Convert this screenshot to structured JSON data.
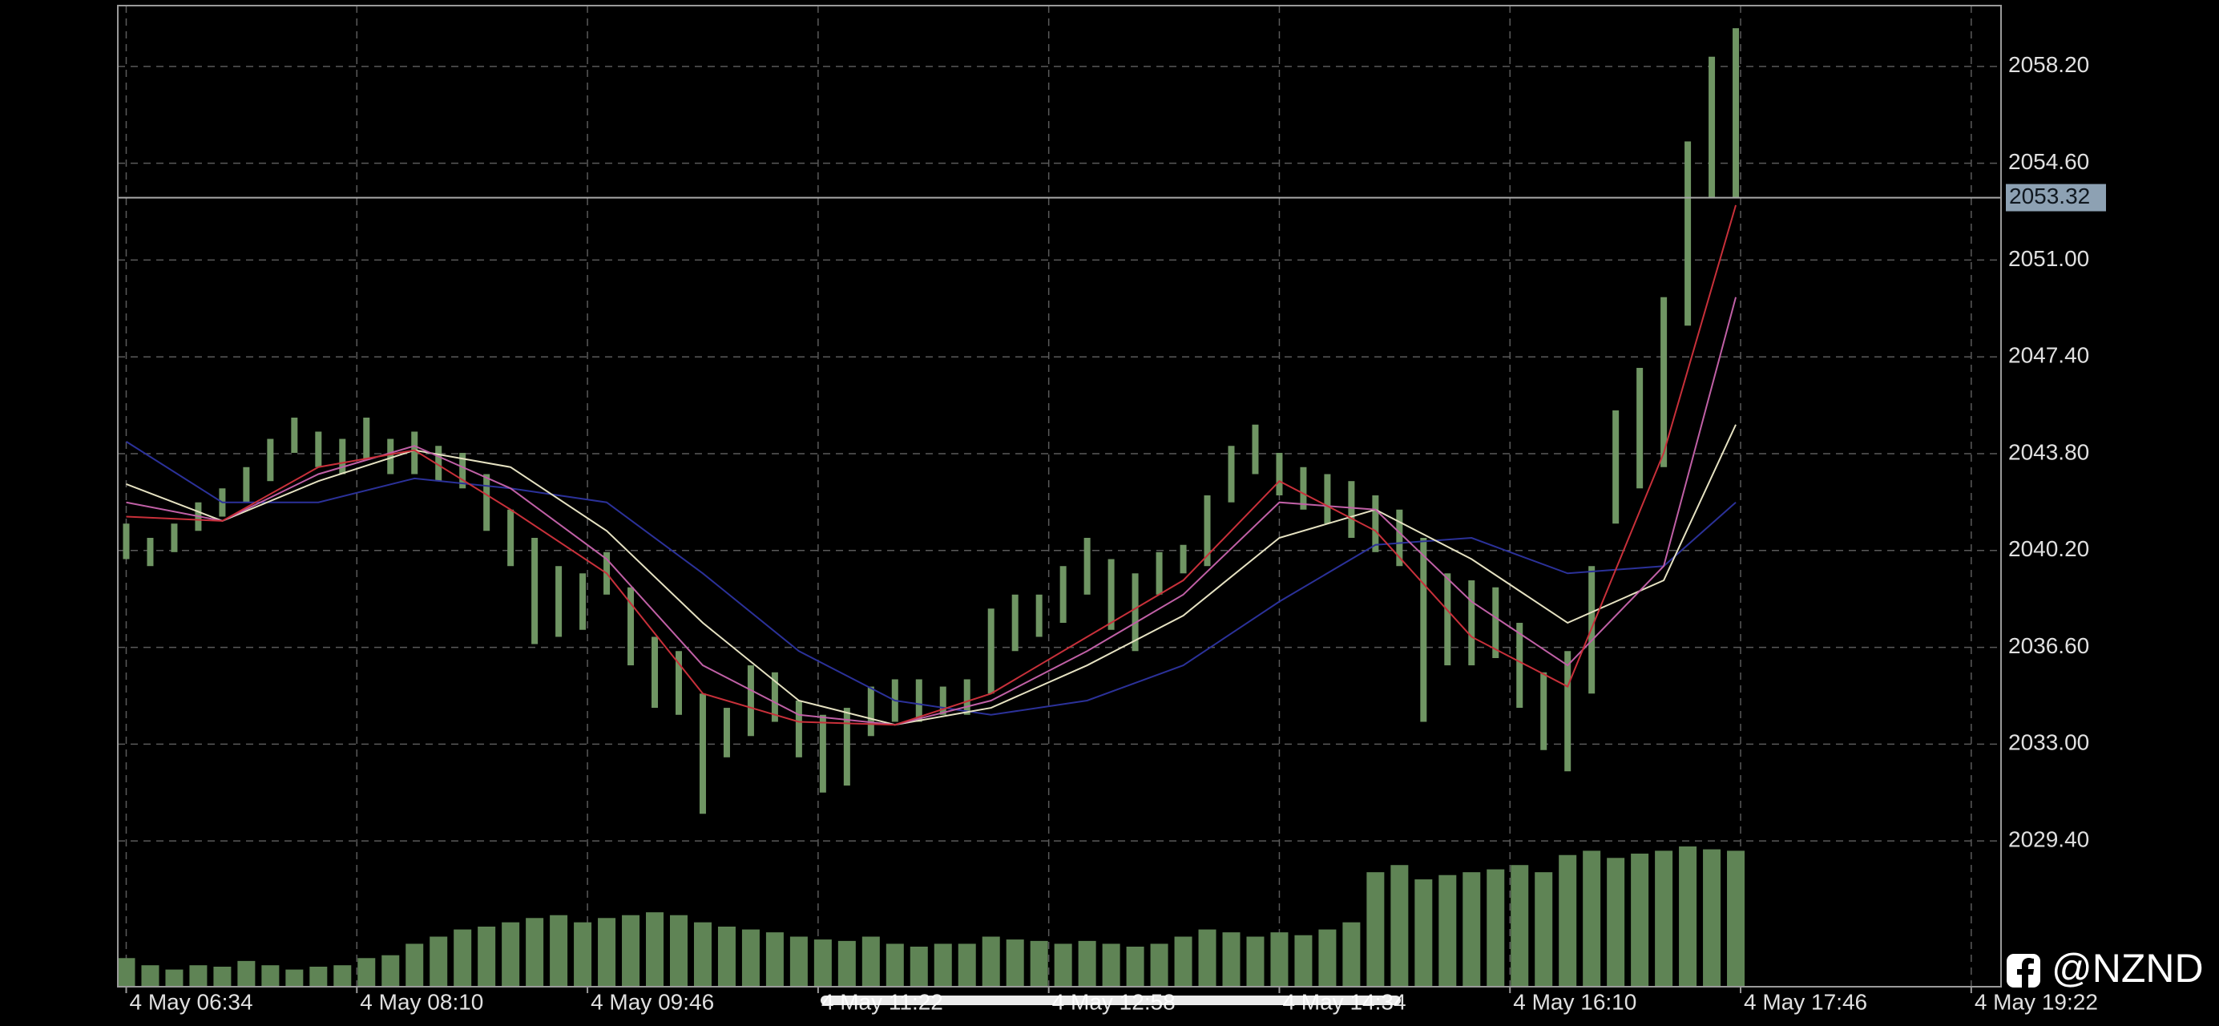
{
  "chart_data": {
    "type": "hilo",
    "xlim": [
      390.5,
      1174.4
    ],
    "ylim": [
      2023.98,
      2060.46
    ],
    "xticks": [
      {
        "value": 394,
        "label": "4 May 06:34"
      },
      {
        "value": 490,
        "label": "4 May 08:10"
      },
      {
        "value": 586,
        "label": "4 May 09:46"
      },
      {
        "value": 682,
        "label": "4 May 11:22"
      },
      {
        "value": 778,
        "label": "4 May 12:58"
      },
      {
        "value": 874,
        "label": "4 May 14:34"
      },
      {
        "value": 970,
        "label": "4 May 16:10"
      },
      {
        "value": 1066,
        "label": "4 May 17:46"
      },
      {
        "value": 1162,
        "label": "4 May 19:22"
      }
    ],
    "yticks": [
      {
        "value": 2058.2,
        "label": "2058.20"
      },
      {
        "value": 2054.6,
        "label": "2054.60"
      },
      {
        "value": 2051.0,
        "label": "2051.00"
      },
      {
        "value": 2047.4,
        "label": "2047.40"
      },
      {
        "value": 2043.8,
        "label": "2043.80"
      },
      {
        "value": 2040.2,
        "label": "2040.20"
      },
      {
        "value": 2036.6,
        "label": "2036.60"
      },
      {
        "value": 2033.0,
        "label": "2033.00"
      },
      {
        "value": 2029.4,
        "label": "2029.40"
      }
    ],
    "grid": true,
    "bar_color": "#6f9563",
    "volume_color": "#5f8455",
    "current_price": 2053.32,
    "x": [
      394,
      404,
      414,
      424,
      434,
      444,
      454,
      464,
      474,
      484,
      494,
      504,
      514,
      524,
      534,
      544,
      554,
      564,
      574,
      584,
      594,
      604,
      614,
      624,
      634,
      644,
      654,
      664,
      674,
      684,
      694,
      704,
      714,
      724,
      734,
      744,
      754,
      764,
      774,
      784,
      794,
      804,
      814,
      824,
      834,
      844,
      854,
      864,
      874,
      884,
      894,
      904,
      914,
      924,
      934,
      944,
      954,
      964,
      974,
      984,
      994,
      1004,
      1014,
      1024,
      1034,
      1044,
      1054,
      1064
    ],
    "high": [
      2041.2,
      2040.67,
      2041.2,
      2041.99,
      2042.51,
      2043.3,
      2044.35,
      2045.14,
      2044.62,
      2044.35,
      2045.14,
      2044.35,
      2044.62,
      2044.09,
      2043.83,
      2043.04,
      2041.72,
      2040.67,
      2039.62,
      2039.35,
      2040.14,
      2038.83,
      2036.99,
      2036.46,
      2034.88,
      2034.35,
      2035.93,
      2035.67,
      2034.62,
      2034.09,
      2034.35,
      2035.14,
      2035.41,
      2035.41,
      2035.14,
      2035.41,
      2038.04,
      2038.56,
      2038.56,
      2039.62,
      2040.67,
      2039.88,
      2039.35,
      2040.14,
      2040.41,
      2042.25,
      2044.09,
      2044.88,
      2043.83,
      2043.3,
      2043.04,
      2042.78,
      2042.25,
      2041.72,
      2040.67,
      2039.35,
      2039.09,
      2038.83,
      2037.51,
      2035.67,
      2036.46,
      2039.62,
      2045.41,
      2046.99,
      2049.62,
      2055.41,
      2058.56,
      2059.62
    ],
    "low": [
      2039.88,
      2039.62,
      2040.14,
      2040.93,
      2041.46,
      2041.99,
      2042.78,
      2043.83,
      2043.3,
      2043.04,
      2043.56,
      2043.04,
      2043.04,
      2042.78,
      2042.51,
      2040.93,
      2039.62,
      2036.72,
      2036.99,
      2037.25,
      2038.56,
      2035.93,
      2034.35,
      2034.09,
      2030.41,
      2032.51,
      2033.3,
      2033.83,
      2032.51,
      2031.2,
      2031.46,
      2033.3,
      2033.83,
      2033.83,
      2034.09,
      2034.09,
      2034.88,
      2036.46,
      2036.99,
      2037.51,
      2038.56,
      2037.25,
      2036.46,
      2038.56,
      2039.35,
      2039.62,
      2041.99,
      2043.04,
      2042.25,
      2041.72,
      2041.2,
      2040.67,
      2040.14,
      2039.62,
      2033.83,
      2035.93,
      2035.93,
      2036.2,
      2034.35,
      2032.78,
      2031.99,
      2034.88,
      2041.2,
      2042.51,
      2043.3,
      2048.56,
      2053.3,
      2053.3
    ],
    "volume": [
      20,
      15,
      12,
      15,
      14,
      18,
      15,
      12,
      14,
      15,
      20,
      22,
      30,
      35,
      40,
      42,
      45,
      48,
      50,
      45,
      48,
      50,
      52,
      50,
      45,
      42,
      40,
      38,
      35,
      33,
      32,
      35,
      30,
      28,
      30,
      30,
      35,
      33,
      32,
      30,
      32,
      30,
      28,
      30,
      35,
      40,
      38,
      35,
      38,
      36,
      40,
      45,
      80,
      85,
      75,
      78,
      80,
      82,
      85,
      80,
      92,
      95,
      90,
      93,
      95,
      98,
      96,
      95
    ],
    "moving_averages": {
      "x": [
        394,
        434,
        474,
        514,
        554,
        594,
        634,
        674,
        714,
        754,
        794,
        834,
        874,
        914,
        954,
        994,
        1034,
        1064
      ],
      "series": [
        {
          "color": "#2b3199",
          "values": [
            2044.25,
            2041.99,
            2041.99,
            2042.88,
            2042.51,
            2041.99,
            2039.35,
            2036.46,
            2034.62,
            2034.09,
            2034.62,
            2035.93,
            2038.3,
            2040.41,
            2040.67,
            2039.35,
            2039.62,
            2041.99
          ]
        },
        {
          "color": "#e6e2c2",
          "values": [
            2042.67,
            2041.3,
            2042.78,
            2043.93,
            2043.3,
            2040.93,
            2037.51,
            2034.62,
            2033.72,
            2034.35,
            2035.93,
            2037.78,
            2040.67,
            2041.72,
            2039.88,
            2037.51,
            2039.09,
            2044.88
          ]
        },
        {
          "color": "#c060a6",
          "values": [
            2041.99,
            2041.3,
            2043.04,
            2044.09,
            2042.51,
            2039.88,
            2035.93,
            2034.09,
            2033.72,
            2034.62,
            2036.46,
            2038.56,
            2041.99,
            2041.72,
            2038.3,
            2035.93,
            2039.62,
            2049.62
          ]
        },
        {
          "color": "#c8303a",
          "values": [
            2041.46,
            2041.3,
            2043.3,
            2043.93,
            2041.72,
            2039.35,
            2034.88,
            2033.83,
            2033.72,
            2034.88,
            2036.99,
            2039.09,
            2042.78,
            2040.93,
            2036.99,
            2035.14,
            2043.83,
            2053.04
          ]
        }
      ]
    }
  },
  "watermark": "@NZND"
}
